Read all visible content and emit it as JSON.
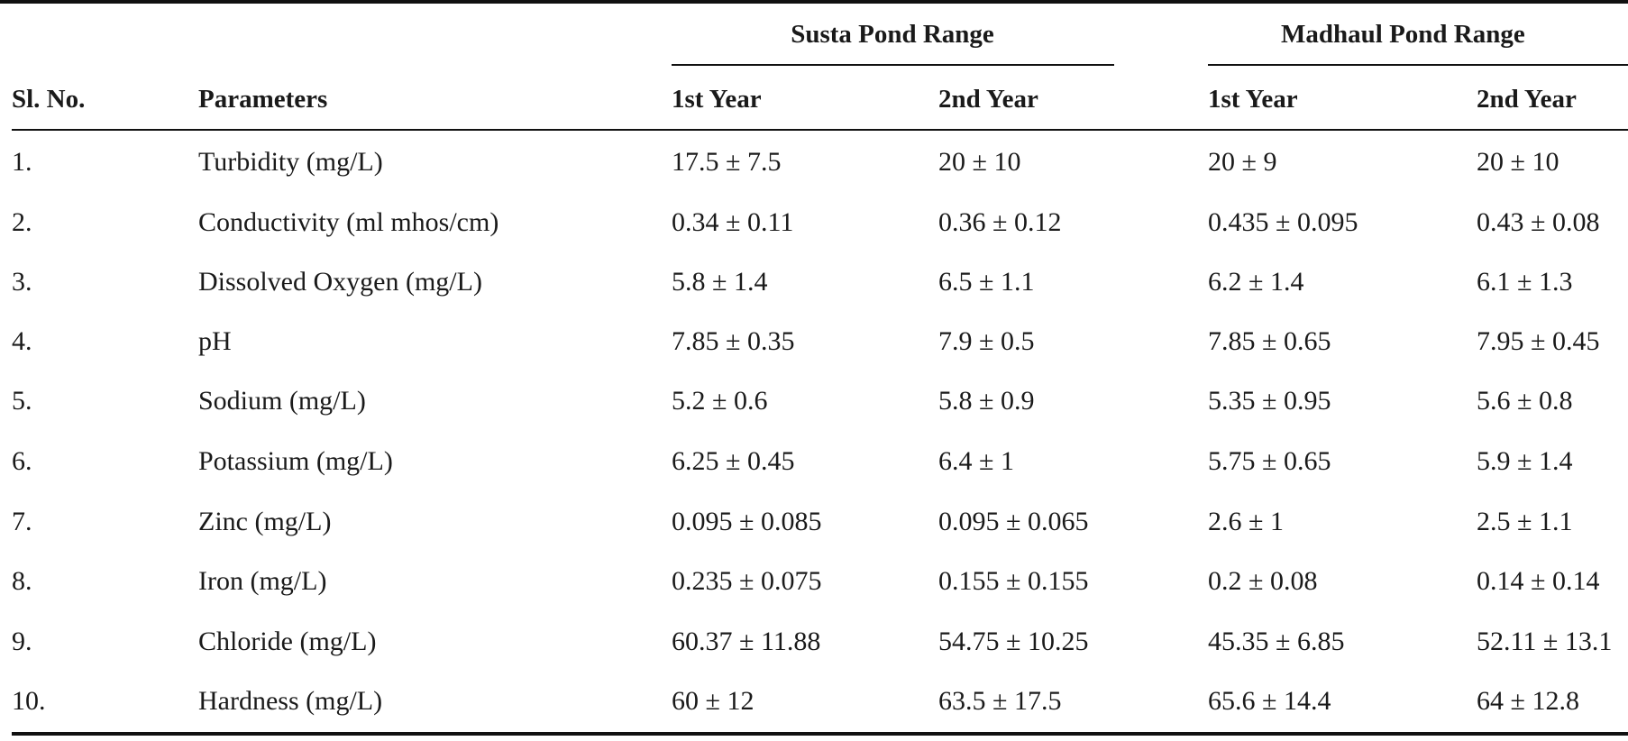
{
  "table": {
    "groups": [
      {
        "label": "Susta Pond Range"
      },
      {
        "label": "Madhaul Pond Range"
      }
    ],
    "headers": {
      "sl_no": "Sl. No.",
      "parameters": "Parameters",
      "susta_y1": "1st Year",
      "susta_y2": "2nd Year",
      "madhaul_y1": "1st Year",
      "madhaul_y2": "2nd Year"
    },
    "rows": [
      {
        "sl": "1.",
        "param": "Turbidity (mg/L)",
        "s1": "17.5 ± 7.5",
        "s2": "20 ± 10",
        "m1": "20 ± 9",
        "m2": "20 ± 10"
      },
      {
        "sl": "2.",
        "param": "Conductivity (ml mhos/cm)",
        "s1": "0.34 ± 0.11",
        "s2": "0.36 ± 0.12",
        "m1": "0.435 ± 0.095",
        "m2": "0.43 ± 0.08"
      },
      {
        "sl": "3.",
        "param": "Dissolved Oxygen (mg/L)",
        "s1": "5.8 ± 1.4",
        "s2": "6.5 ± 1.1",
        "m1": "6.2 ± 1.4",
        "m2": "6.1 ± 1.3"
      },
      {
        "sl": "4.",
        "param": "pH",
        "s1": "7.85 ± 0.35",
        "s2": "7.9 ± 0.5",
        "m1": "7.85 ± 0.65",
        "m2": "7.95 ± 0.45"
      },
      {
        "sl": "5.",
        "param": "Sodium (mg/L)",
        "s1": "5.2 ± 0.6",
        "s2": "5.8 ± 0.9",
        "m1": "5.35 ± 0.95",
        "m2": "5.6 ± 0.8"
      },
      {
        "sl": "6.",
        "param": "Potassium (mg/L)",
        "s1": "6.25 ± 0.45",
        "s2": "6.4 ± 1",
        "m1": "5.75 ± 0.65",
        "m2": "5.9 ± 1.4"
      },
      {
        "sl": "7.",
        "param": "Zinc (mg/L)",
        "s1": "0.095 ± 0.085",
        "s2": "0.095 ± 0.065",
        "m1": "2.6 ± 1",
        "m2": "2.5 ± 1.1"
      },
      {
        "sl": "8.",
        "param": "Iron (mg/L)",
        "s1": "0.235 ± 0.075",
        "s2": "0.155 ± 0.155",
        "m1": "0.2 ± 0.08",
        "m2": "0.14 ± 0.14"
      },
      {
        "sl": "9.",
        "param": "Chloride (mg/L)",
        "s1": "60.37 ± 11.88",
        "s2": "54.75 ± 10.25",
        "m1": "45.35 ± 6.85",
        "m2": "52.11 ± 13.1"
      },
      {
        "sl": "10.",
        "param": "Hardness (mg/L)",
        "s1": "60 ± 12",
        "s2": "63.5 ± 17.5",
        "m1": "65.6 ± 14.4",
        "m2": "64 ± 12.8"
      }
    ]
  }
}
